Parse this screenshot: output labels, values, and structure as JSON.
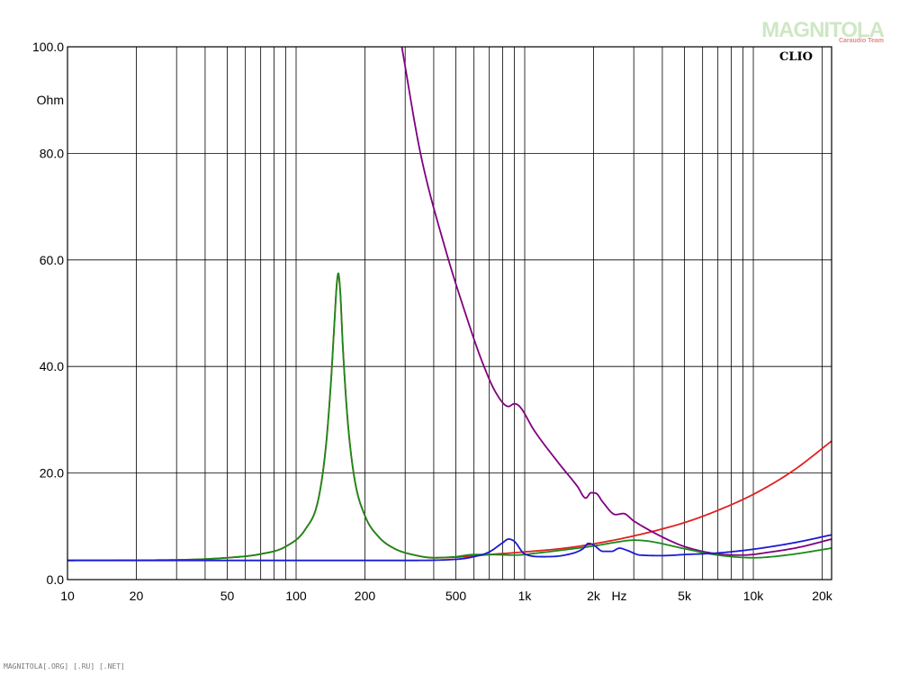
{
  "brand": "CLIO",
  "watermark": {
    "main": "MAGNITOLA",
    "sub": "Caraudio Team"
  },
  "footer": "MAGNITOLA[.ORG] [.RU] [.NET]",
  "chart_data": {
    "type": "line",
    "title": "",
    "xlabel": "Hz",
    "ylabel": "Ohm",
    "xscale": "log",
    "xlim": [
      10,
      22000
    ],
    "ylim": [
      0,
      100
    ],
    "grid": true,
    "x_ticks": [
      {
        "v": 10,
        "label": "10"
      },
      {
        "v": 20,
        "label": "20"
      },
      {
        "v": 50,
        "label": "50"
      },
      {
        "v": 100,
        "label": "100"
      },
      {
        "v": 200,
        "label": "200"
      },
      {
        "v": 500,
        "label": "500"
      },
      {
        "v": 1000,
        "label": "1k"
      },
      {
        "v": 2000,
        "label": "2k"
      },
      {
        "v": 5000,
        "label": "5k"
      },
      {
        "v": 10000,
        "label": "10k"
      },
      {
        "v": 20000,
        "label": "20k"
      }
    ],
    "y_ticks": [
      {
        "v": 0,
        "label": "0.0"
      },
      {
        "v": 20,
        "label": "20.0"
      },
      {
        "v": 40,
        "label": "40.0"
      },
      {
        "v": 60,
        "label": "60.0"
      },
      {
        "v": 80,
        "label": "80.0"
      },
      {
        "v": 100,
        "label": "100.0"
      }
    ],
    "series": [
      {
        "color": "#e02020",
        "points": [
          [
            10,
            3.6
          ],
          [
            30,
            3.7
          ],
          [
            50,
            4.1
          ],
          [
            70,
            4.8
          ],
          [
            90,
            6.2
          ],
          [
            110,
            9.5
          ],
          [
            125,
            15
          ],
          [
            135,
            25
          ],
          [
            142,
            37
          ],
          [
            147,
            48
          ],
          [
            151,
            56
          ],
          [
            153,
            57
          ],
          [
            156,
            54
          ],
          [
            160,
            44
          ],
          [
            168,
            30
          ],
          [
            180,
            19
          ],
          [
            200,
            12
          ],
          [
            230,
            8
          ],
          [
            270,
            5.8
          ],
          [
            330,
            4.6
          ],
          [
            400,
            4.1
          ],
          [
            500,
            4.2
          ],
          [
            700,
            4.7
          ],
          [
            1000,
            5.2
          ],
          [
            1500,
            5.9
          ],
          [
            2000,
            6.7
          ],
          [
            3000,
            8.2
          ],
          [
            5000,
            10.7
          ],
          [
            7000,
            13
          ],
          [
            10000,
            16
          ],
          [
            15000,
            20.5
          ],
          [
            22000,
            26
          ]
        ]
      },
      {
        "color": "#800080",
        "points": [
          [
            290,
            100
          ],
          [
            350,
            80
          ],
          [
            450,
            62
          ],
          [
            550,
            50
          ],
          [
            650,
            41
          ],
          [
            750,
            35
          ],
          [
            850,
            32.5
          ],
          [
            900,
            33
          ],
          [
            950,
            32.5
          ],
          [
            1100,
            28
          ],
          [
            1400,
            22
          ],
          [
            1700,
            17.5
          ],
          [
            1850,
            15.3
          ],
          [
            1950,
            16.3
          ],
          [
            2050,
            16.2
          ],
          [
            2200,
            14.5
          ],
          [
            2500,
            12.2
          ],
          [
            2700,
            12.4
          ],
          [
            3000,
            11
          ],
          [
            4000,
            8
          ],
          [
            5000,
            6.2
          ],
          [
            7000,
            4.8
          ],
          [
            9000,
            4.6
          ],
          [
            12000,
            5.2
          ],
          [
            16000,
            6.1
          ],
          [
            22000,
            7.6
          ]
        ]
      },
      {
        "color": "#1a8a1a",
        "points": [
          [
            10,
            3.6
          ],
          [
            30,
            3.7
          ],
          [
            50,
            4.1
          ],
          [
            70,
            4.8
          ],
          [
            90,
            6.2
          ],
          [
            110,
            9.5
          ],
          [
            125,
            15
          ],
          [
            135,
            25
          ],
          [
            142,
            37
          ],
          [
            147,
            48
          ],
          [
            151,
            56
          ],
          [
            153,
            57.5
          ],
          [
            156,
            54
          ],
          [
            160,
            44
          ],
          [
            168,
            30
          ],
          [
            180,
            19
          ],
          [
            200,
            12
          ],
          [
            230,
            8
          ],
          [
            270,
            5.8
          ],
          [
            330,
            4.6
          ],
          [
            400,
            4.1
          ],
          [
            500,
            4.3
          ],
          [
            600,
            4.7
          ],
          [
            700,
            4.7
          ],
          [
            900,
            4.6
          ],
          [
            1200,
            5.1
          ],
          [
            1500,
            5.6
          ],
          [
            2000,
            6.3
          ],
          [
            2500,
            7
          ],
          [
            3000,
            7.4
          ],
          [
            3500,
            7.2
          ],
          [
            5000,
            5.8
          ],
          [
            7000,
            4.6
          ],
          [
            10000,
            4.1
          ],
          [
            14000,
            4.6
          ],
          [
            22000,
            5.9
          ]
        ]
      },
      {
        "color": "#1a1ad4",
        "points": [
          [
            10,
            3.6
          ],
          [
            100,
            3.6
          ],
          [
            300,
            3.6
          ],
          [
            500,
            3.8
          ],
          [
            600,
            4.3
          ],
          [
            700,
            5.2
          ],
          [
            800,
            6.9
          ],
          [
            850,
            7.6
          ],
          [
            900,
            7.2
          ],
          [
            1000,
            4.8
          ],
          [
            1200,
            4.3
          ],
          [
            1500,
            4.6
          ],
          [
            1800,
            5.8
          ],
          [
            1900,
            6.8
          ],
          [
            2000,
            6.5
          ],
          [
            2200,
            5.3
          ],
          [
            2400,
            5.3
          ],
          [
            2600,
            5.9
          ],
          [
            2800,
            5.5
          ],
          [
            3200,
            4.6
          ],
          [
            4000,
            4.5
          ],
          [
            5000,
            4.7
          ],
          [
            7000,
            5
          ],
          [
            10000,
            5.7
          ],
          [
            15000,
            6.9
          ],
          [
            22000,
            8.4
          ]
        ]
      }
    ]
  }
}
